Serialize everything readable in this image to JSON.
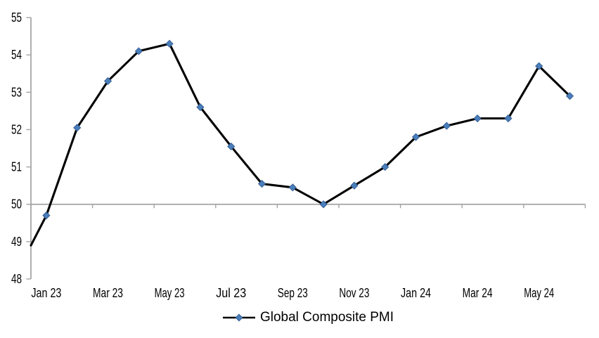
{
  "chart_data": {
    "type": "line",
    "title": "",
    "legend": "Global Composite PMI",
    "legend_position": "bottom",
    "marker": "diamond",
    "grid": false,
    "categories": [
      "Jan 23",
      "Feb 23",
      "Mar 23",
      "Apr 23",
      "May 23",
      "Jun 23",
      "Jul 23",
      "Aug 23",
      "Sep 23",
      "Oct 23",
      "Nov 23",
      "Dec 23",
      "Jan 24",
      "Feb 24",
      "Mar 24",
      "Apr 24",
      "May 24",
      "Jun 24"
    ],
    "values": [
      49.7,
      52.05,
      53.3,
      54.1,
      54.3,
      52.6,
      51.55,
      50.55,
      50.45,
      50.0,
      50.5,
      51.0,
      51.8,
      52.1,
      52.3,
      52.3,
      53.7,
      52.9
    ],
    "line_enters_left_edge_at_value": 48.9,
    "ylim": [
      48,
      55
    ],
    "y_ticks": [
      55,
      54,
      53,
      52,
      51,
      50,
      49,
      48
    ],
    "x_tick_labels": [
      "Jan 23",
      "Mar 23",
      "May 23",
      "Jul 23",
      "Sep 23",
      "Nov 23",
      "Jan 24",
      "Mar 24",
      "May 24"
    ],
    "x_tick_label_interval": 2,
    "x_axis_cross_at": 50,
    "colors": {
      "line": "#000000",
      "marker_fill": "#4a7ebb",
      "marker_edge": "#345f94",
      "axis": "#a3a3a3",
      "text": "#000000",
      "background": "#ffffff"
    }
  }
}
